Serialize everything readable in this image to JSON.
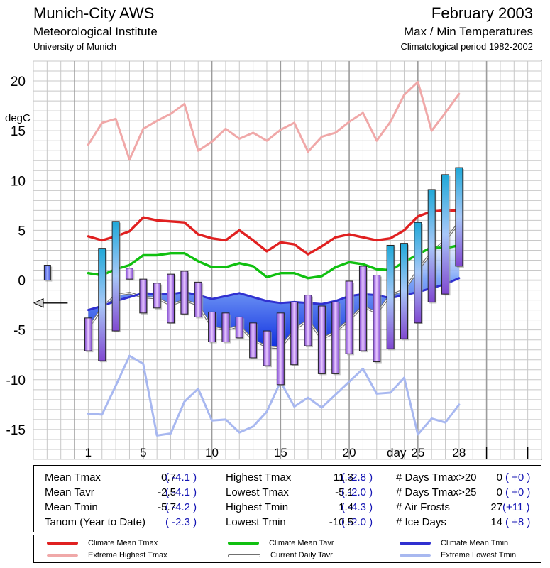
{
  "header": {
    "station": "Munich-City AWS",
    "institute": "Meteorological Institute",
    "university": "University of Munich",
    "month": "February 2003",
    "chart_title": "Max / Min Temperatures",
    "period": "Climatological period 1982-2002"
  },
  "chart_data": {
    "type": "line",
    "title": "Max / Min Temperatures",
    "ylabel": "degC",
    "xlabel": "day",
    "ylim": [
      -18,
      22
    ],
    "xlim": [
      -3,
      34
    ],
    "y_ticks": [
      20,
      15,
      10,
      5,
      0,
      -5,
      -10,
      -15
    ],
    "x_ticks": [
      1,
      5,
      10,
      15,
      20,
      25,
      28
    ],
    "days": [
      1,
      2,
      3,
      4,
      5,
      6,
      7,
      8,
      9,
      10,
      11,
      12,
      13,
      14,
      15,
      16,
      17,
      18,
      19,
      20,
      21,
      22,
      23,
      24,
      25,
      26,
      27,
      28
    ],
    "daily_tmax": [
      -3.8,
      3.2,
      5.9,
      1.2,
      0.1,
      -0.3,
      0.6,
      0.9,
      -0.2,
      -3.2,
      -3.3,
      -3.7,
      -4.3,
      -5.1,
      -3.3,
      -2.2,
      -1.5,
      -2.6,
      -2.2,
      -0.1,
      1.4,
      0.5,
      3.5,
      3.7,
      5.8,
      9.1,
      10.6,
      11.3
    ],
    "daily_tmin": [
      -7.1,
      -8.1,
      -5.1,
      0.1,
      -3.3,
      -2.8,
      -4.3,
      -3.4,
      -3.7,
      -6.2,
      -6.2,
      -5.8,
      -7.8,
      -8.6,
      -10.5,
      -8.5,
      -6.6,
      -9.4,
      -9.4,
      -7.4,
      -7.1,
      -8.2,
      -6.9,
      -5.9,
      -4.3,
      -2.2,
      -1.4,
      1.4
    ],
    "current_daily_tavr": [
      -4.8,
      -2.8,
      -1.5,
      -1.3,
      -1.7,
      -1.8,
      -2.5,
      -2.0,
      -2.5,
      -4.7,
      -5.0,
      -4.6,
      -6.0,
      -6.7,
      -6.8,
      -5.0,
      -4.0,
      -5.9,
      -5.2,
      -4.0,
      -2.6,
      -3.3,
      -1.5,
      -1.0,
      1.0,
      2.8,
      4.0,
      5.8
    ],
    "climate_mean_tmax": [
      4.4,
      4.0,
      4.4,
      4.9,
      6.3,
      6.0,
      5.9,
      5.8,
      4.6,
      4.2,
      4.0,
      5.0,
      4.0,
      2.9,
      3.8,
      3.6,
      2.6,
      3.4,
      4.3,
      4.6,
      4.3,
      4.0,
      4.2,
      5.0,
      6.4,
      6.9,
      7.0,
      7.0
    ],
    "climate_mean_tavr": [
      0.7,
      0.5,
      1.1,
      1.5,
      2.5,
      2.5,
      2.7,
      2.7,
      1.9,
      1.3,
      1.3,
      1.7,
      1.4,
      0.3,
      0.7,
      0.7,
      0.2,
      0.4,
      1.3,
      1.8,
      1.6,
      1.1,
      1.0,
      1.8,
      2.6,
      3.3,
      3.2,
      3.5
    ],
    "climate_mean_tmin": [
      -3.0,
      -2.6,
      -2.1,
      -1.7,
      -1.3,
      -1.4,
      -1.4,
      -1.2,
      -1.5,
      -1.9,
      -1.6,
      -1.3,
      -1.7,
      -2.1,
      -2.3,
      -2.2,
      -2.3,
      -2.4,
      -2.1,
      -1.6,
      -1.4,
      -1.5,
      -1.8,
      -1.5,
      -1.2,
      -0.8,
      -0.4,
      0.2
    ],
    "extreme_highest_tmax": [
      13.6,
      15.8,
      16.2,
      12.1,
      15.2,
      16.0,
      16.7,
      17.7,
      13.0,
      13.9,
      15.2,
      14.2,
      14.8,
      14.0,
      15.1,
      15.8,
      12.9,
      14.4,
      14.8,
      15.9,
      16.8,
      14.0,
      15.9,
      18.6,
      19.9,
      15.0,
      16.8,
      18.7
    ],
    "extreme_lowest_tmin": [
      -13.4,
      -13.5,
      -10.6,
      -7.6,
      -8.4,
      -15.6,
      -15.4,
      -12.2,
      -10.9,
      -14.1,
      -14.0,
      -15.3,
      -14.7,
      -13.2,
      -10.2,
      -12.7,
      -11.8,
      -12.8,
      -11.5,
      -10.2,
      -8.9,
      -11.4,
      -11.3,
      -9.8,
      -15.5,
      -13.9,
      -14.3,
      -12.5
    ],
    "tanom_year_to_date": -2.3,
    "legend": [
      "Climate Mean Tmax",
      "Extreme Highest Tmax",
      "Climate Mean Tavr",
      "Current Daily Tavr",
      "Climate Mean Tmin",
      "Extreme Lowest Tmin"
    ],
    "colors": {
      "tmax_mean": "#e02020",
      "tmax_extreme": "#f0a8a8",
      "tavr_mean": "#10c010",
      "tavr_current": "#a0a0a0",
      "tmin_mean": "#3030d0",
      "tmin_extreme": "#a8b8f0",
      "grid": "#c8c8c8"
    }
  },
  "stats": {
    "rows": [
      [
        {
          "label": "Mean Tmax",
          "value": "0.7",
          "anom": "( -4.1 )"
        },
        {
          "label": "Highest Tmax",
          "value": "11.3",
          "anom": "( -2.8 )"
        },
        {
          "label": "# Days Tmax>20",
          "value": "0",
          "anom": "( +0 )"
        }
      ],
      [
        {
          "label": "Mean Tavr",
          "value": "-2.5",
          "anom": "( -4.1 )"
        },
        {
          "label": "Lowest Tmax",
          "value": "-5.1",
          "anom": "( -2.0 )"
        },
        {
          "label": "# Days Tmax>25",
          "value": "0",
          "anom": "( +0 )"
        }
      ],
      [
        {
          "label": "Mean Tmin",
          "value": "-5.7",
          "anom": "( -4.2 )"
        },
        {
          "label": "Highest Tmin",
          "value": "1.4",
          "anom": "( -4.3 )"
        },
        {
          "label": "# Air Frosts",
          "value": "27",
          "anom": "(+11 )"
        }
      ],
      [
        {
          "label": "Tanom (Year to Date)",
          "value": "",
          "anom": "( -2.3 )"
        },
        {
          "label": "Lowest Tmin",
          "value": "-10.5",
          "anom": "( -2.0 )"
        },
        {
          "label": "# Ice Days",
          "value": "14",
          "anom": "( +8 )"
        }
      ]
    ]
  }
}
